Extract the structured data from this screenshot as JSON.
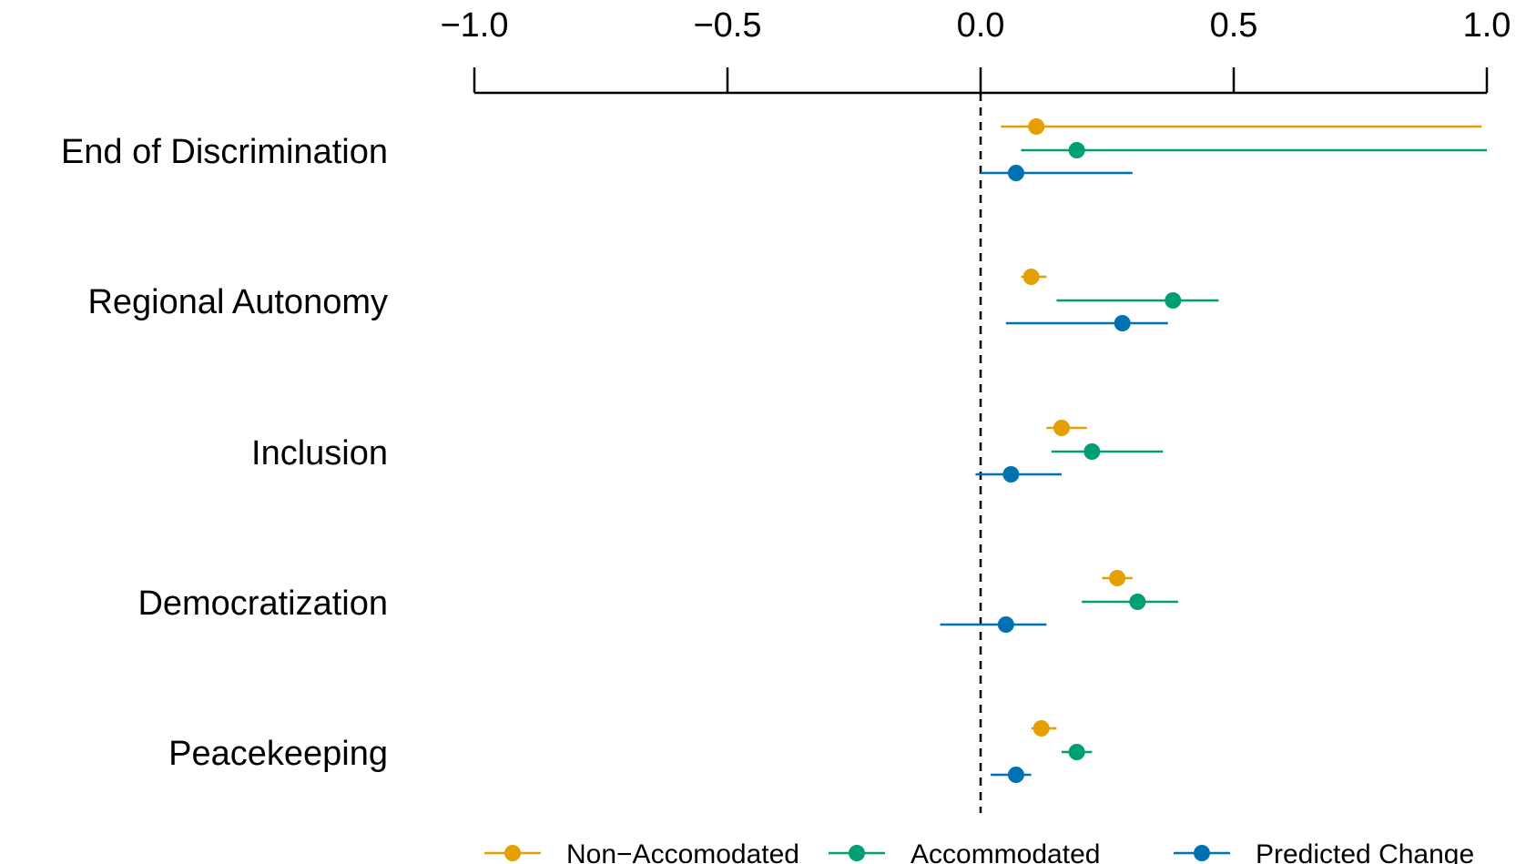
{
  "chart_data": {
    "type": "dot-errorbar",
    "title": "",
    "xlabel": "",
    "ylabel": "",
    "xlim": [
      -1.0,
      1.0
    ],
    "x_ticks": [
      "-1.0",
      "-0.5",
      "0.0",
      "0.5",
      "1.0"
    ],
    "x_tick_values": [
      -1.0,
      -0.5,
      0.0,
      0.5,
      1.0
    ],
    "reference_line": 0.0,
    "axis_position": "top",
    "legend_position": "bottom",
    "categories": [
      "End of Discrimination",
      "Regional Autonomy",
      "Inclusion",
      "Democratization",
      "Peacekeeping"
    ],
    "series": [
      {
        "name": "Non−Accomodated",
        "color": "#E69F00",
        "points": [
          {
            "estimate": 0.11,
            "lower": 0.04,
            "upper": 0.99
          },
          {
            "estimate": 0.1,
            "lower": 0.08,
            "upper": 0.13
          },
          {
            "estimate": 0.16,
            "lower": 0.13,
            "upper": 0.21
          },
          {
            "estimate": 0.27,
            "lower": 0.24,
            "upper": 0.3
          },
          {
            "estimate": 0.12,
            "lower": 0.1,
            "upper": 0.15
          }
        ]
      },
      {
        "name": "Accommodated",
        "color": "#009E73",
        "points": [
          {
            "estimate": 0.19,
            "lower": 0.08,
            "upper": 1.0
          },
          {
            "estimate": 0.38,
            "lower": 0.15,
            "upper": 0.47
          },
          {
            "estimate": 0.22,
            "lower": 0.14,
            "upper": 0.36
          },
          {
            "estimate": 0.31,
            "lower": 0.2,
            "upper": 0.39
          },
          {
            "estimate": 0.19,
            "lower": 0.16,
            "upper": 0.22
          }
        ]
      },
      {
        "name": "Predicted Change",
        "color": "#0072B2",
        "points": [
          {
            "estimate": 0.07,
            "lower": 0.0,
            "upper": 0.3
          },
          {
            "estimate": 0.28,
            "lower": 0.05,
            "upper": 0.37
          },
          {
            "estimate": 0.06,
            "lower": -0.01,
            "upper": 0.16
          },
          {
            "estimate": 0.05,
            "lower": -0.08,
            "upper": 0.13
          },
          {
            "estimate": 0.07,
            "lower": 0.02,
            "upper": 0.1
          }
        ]
      }
    ]
  }
}
